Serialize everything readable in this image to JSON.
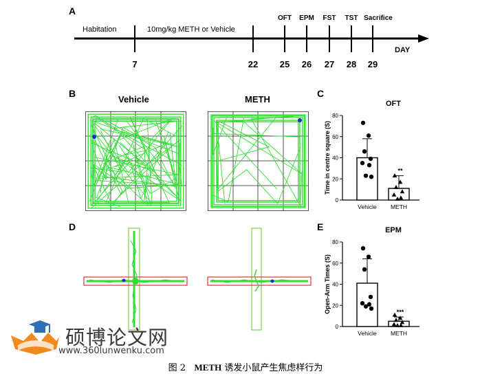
{
  "panels": {
    "a": "A",
    "b": "B",
    "c": "C",
    "d": "D",
    "e": "E"
  },
  "timeline": {
    "phases": [
      "Habitation",
      "10mg/kg METH or  Vehicle"
    ],
    "days": [
      "7",
      "22",
      "25",
      "26",
      "27",
      "28",
      "29"
    ],
    "tests": [
      "OFT",
      "EPM",
      "FST",
      "TST",
      "Sacrifice"
    ],
    "axis_label": "DAY"
  },
  "tracks": {
    "vehicle_label": "Vehicle",
    "meth_label": "METH"
  },
  "track_colors": {
    "path": "#33dd33",
    "marker": "#1a2ccc",
    "arm_box": "#dd3333",
    "closed_box": "#7ad04c"
  },
  "chart_data": [
    {
      "type": "bar",
      "title": "OFT",
      "ylabel": "Time in centre square (S)",
      "categories": [
        "Vehicle",
        "METH"
      ],
      "values": [
        40,
        11
      ],
      "errors": [
        18,
        12
      ],
      "significance": [
        "",
        "**"
      ],
      "ylim": [
        0,
        80
      ],
      "yticks": [
        "0",
        "20",
        "40",
        "60",
        "80"
      ],
      "points": [
        [
          73,
          61,
          46,
          39,
          35,
          33,
          23,
          22
        ],
        [
          23,
          17,
          12,
          8,
          5,
          2,
          1
        ]
      ]
    },
    {
      "type": "bar",
      "title": "EPM",
      "ylabel": "Open-Arm Times (S)",
      "categories": [
        "Vehicle",
        "METH"
      ],
      "values": [
        41,
        5
      ],
      "errors": [
        23,
        4
      ],
      "significance": [
        "",
        "***"
      ],
      "ylim": [
        0,
        80
      ],
      "yticks": [
        "0",
        "20",
        "40",
        "60",
        "80"
      ],
      "points": [
        [
          74,
          66,
          54,
          28,
          22,
          21,
          19,
          17
        ],
        [
          11,
          8,
          6,
          4,
          2,
          1,
          1
        ]
      ]
    }
  ],
  "watermark": {
    "title": "硕博论文网",
    "url": "www.360lunwenku.com"
  },
  "caption": {
    "label": "图 2",
    "bold": "METH",
    "rest": " 诱发小鼠产生焦虑样行为"
  }
}
